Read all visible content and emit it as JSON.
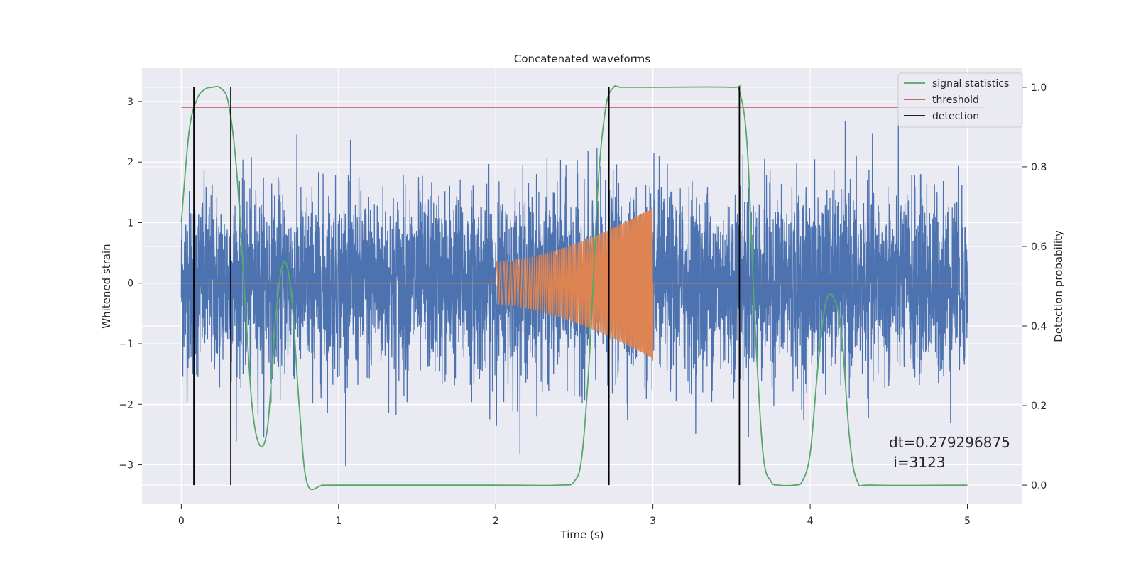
{
  "chart_data": {
    "type": "line",
    "title": "Concatenated waveforms",
    "xlabel": "Time (s)",
    "ylabel": "Whitened strain",
    "y2label": "Detection probability",
    "xlim": [
      -0.25,
      5.35
    ],
    "ylim": [
      -3.65,
      3.55
    ],
    "y2lim": [
      -0.048,
      1.048
    ],
    "xticks": [
      0,
      1,
      2,
      3,
      4,
      5
    ],
    "yticks": [
      -3,
      -2,
      -1,
      0,
      1,
      2,
      3
    ],
    "y2ticks": [
      0.0,
      0.2,
      0.4,
      0.6,
      0.8,
      1.0
    ],
    "xtick_labels": [
      "0",
      "1",
      "2",
      "3",
      "4",
      "5"
    ],
    "ytick_labels": [
      "−3",
      "−2",
      "−1",
      "0",
      "1",
      "2",
      "3"
    ],
    "y2tick_labels": [
      "0.0",
      "0.2",
      "0.4",
      "0.6",
      "0.8",
      "1.0"
    ],
    "grid": true,
    "legend_position": "top-right",
    "legend": [
      {
        "label": "signal statistics",
        "color": "#55a868"
      },
      {
        "label": "threshold",
        "color": "#c44e52"
      },
      {
        "label": "detection",
        "color": "#000000"
      }
    ],
    "annotation": {
      "line1": "dt=0.279296875",
      "line2": " i=3123"
    },
    "colors": {
      "noise": "#4c72b0",
      "chirp": "#dd8452",
      "signal": "#55a868",
      "threshold": "#c44e52",
      "detection": "#000000",
      "background": "#eaeaf2"
    },
    "noise": {
      "x_range": [
        0,
        5
      ],
      "std": 0.75,
      "max_abs": 3.25
    },
    "chirp": {
      "x_start": 2.0,
      "x_end": 3.0,
      "amp_start": 0.35,
      "amp_end": 1.25
    },
    "threshold": {
      "x_range": [
        0,
        5.1
      ],
      "value": 0.95
    },
    "detections": [
      0.08,
      0.315,
      2.72,
      3.55
    ],
    "detection_range": [
      0.0,
      1.0
    ],
    "signal_statistics": {
      "x": [
        0.0,
        0.05,
        0.1,
        0.15,
        0.2,
        0.25,
        0.3,
        0.35,
        0.4,
        0.45,
        0.5,
        0.55,
        0.6,
        0.65,
        0.7,
        0.75,
        0.8,
        0.9,
        1.0,
        1.5,
        2.0,
        2.4,
        2.5,
        2.55,
        2.6,
        2.65,
        2.7,
        2.75,
        2.8,
        3.0,
        3.5,
        3.55,
        3.6,
        3.65,
        3.7,
        3.75,
        3.8,
        3.9,
        3.95,
        4.0,
        4.05,
        4.1,
        4.15,
        4.2,
        4.25,
        4.3,
        4.4,
        5.0
      ],
      "y": [
        0.66,
        0.89,
        0.97,
        0.995,
        1.0,
        0.998,
        0.96,
        0.8,
        0.5,
        0.2,
        0.1,
        0.15,
        0.42,
        0.56,
        0.48,
        0.2,
        0.005,
        0.0,
        0.0,
        0.0,
        0.0,
        0.0,
        0.01,
        0.08,
        0.35,
        0.75,
        0.95,
        1.0,
        1.0,
        1.0,
        1.0,
        0.99,
        0.85,
        0.4,
        0.08,
        0.01,
        0.0,
        0.0,
        0.01,
        0.08,
        0.3,
        0.46,
        0.47,
        0.38,
        0.12,
        0.01,
        0.0,
        0.0
      ]
    }
  }
}
